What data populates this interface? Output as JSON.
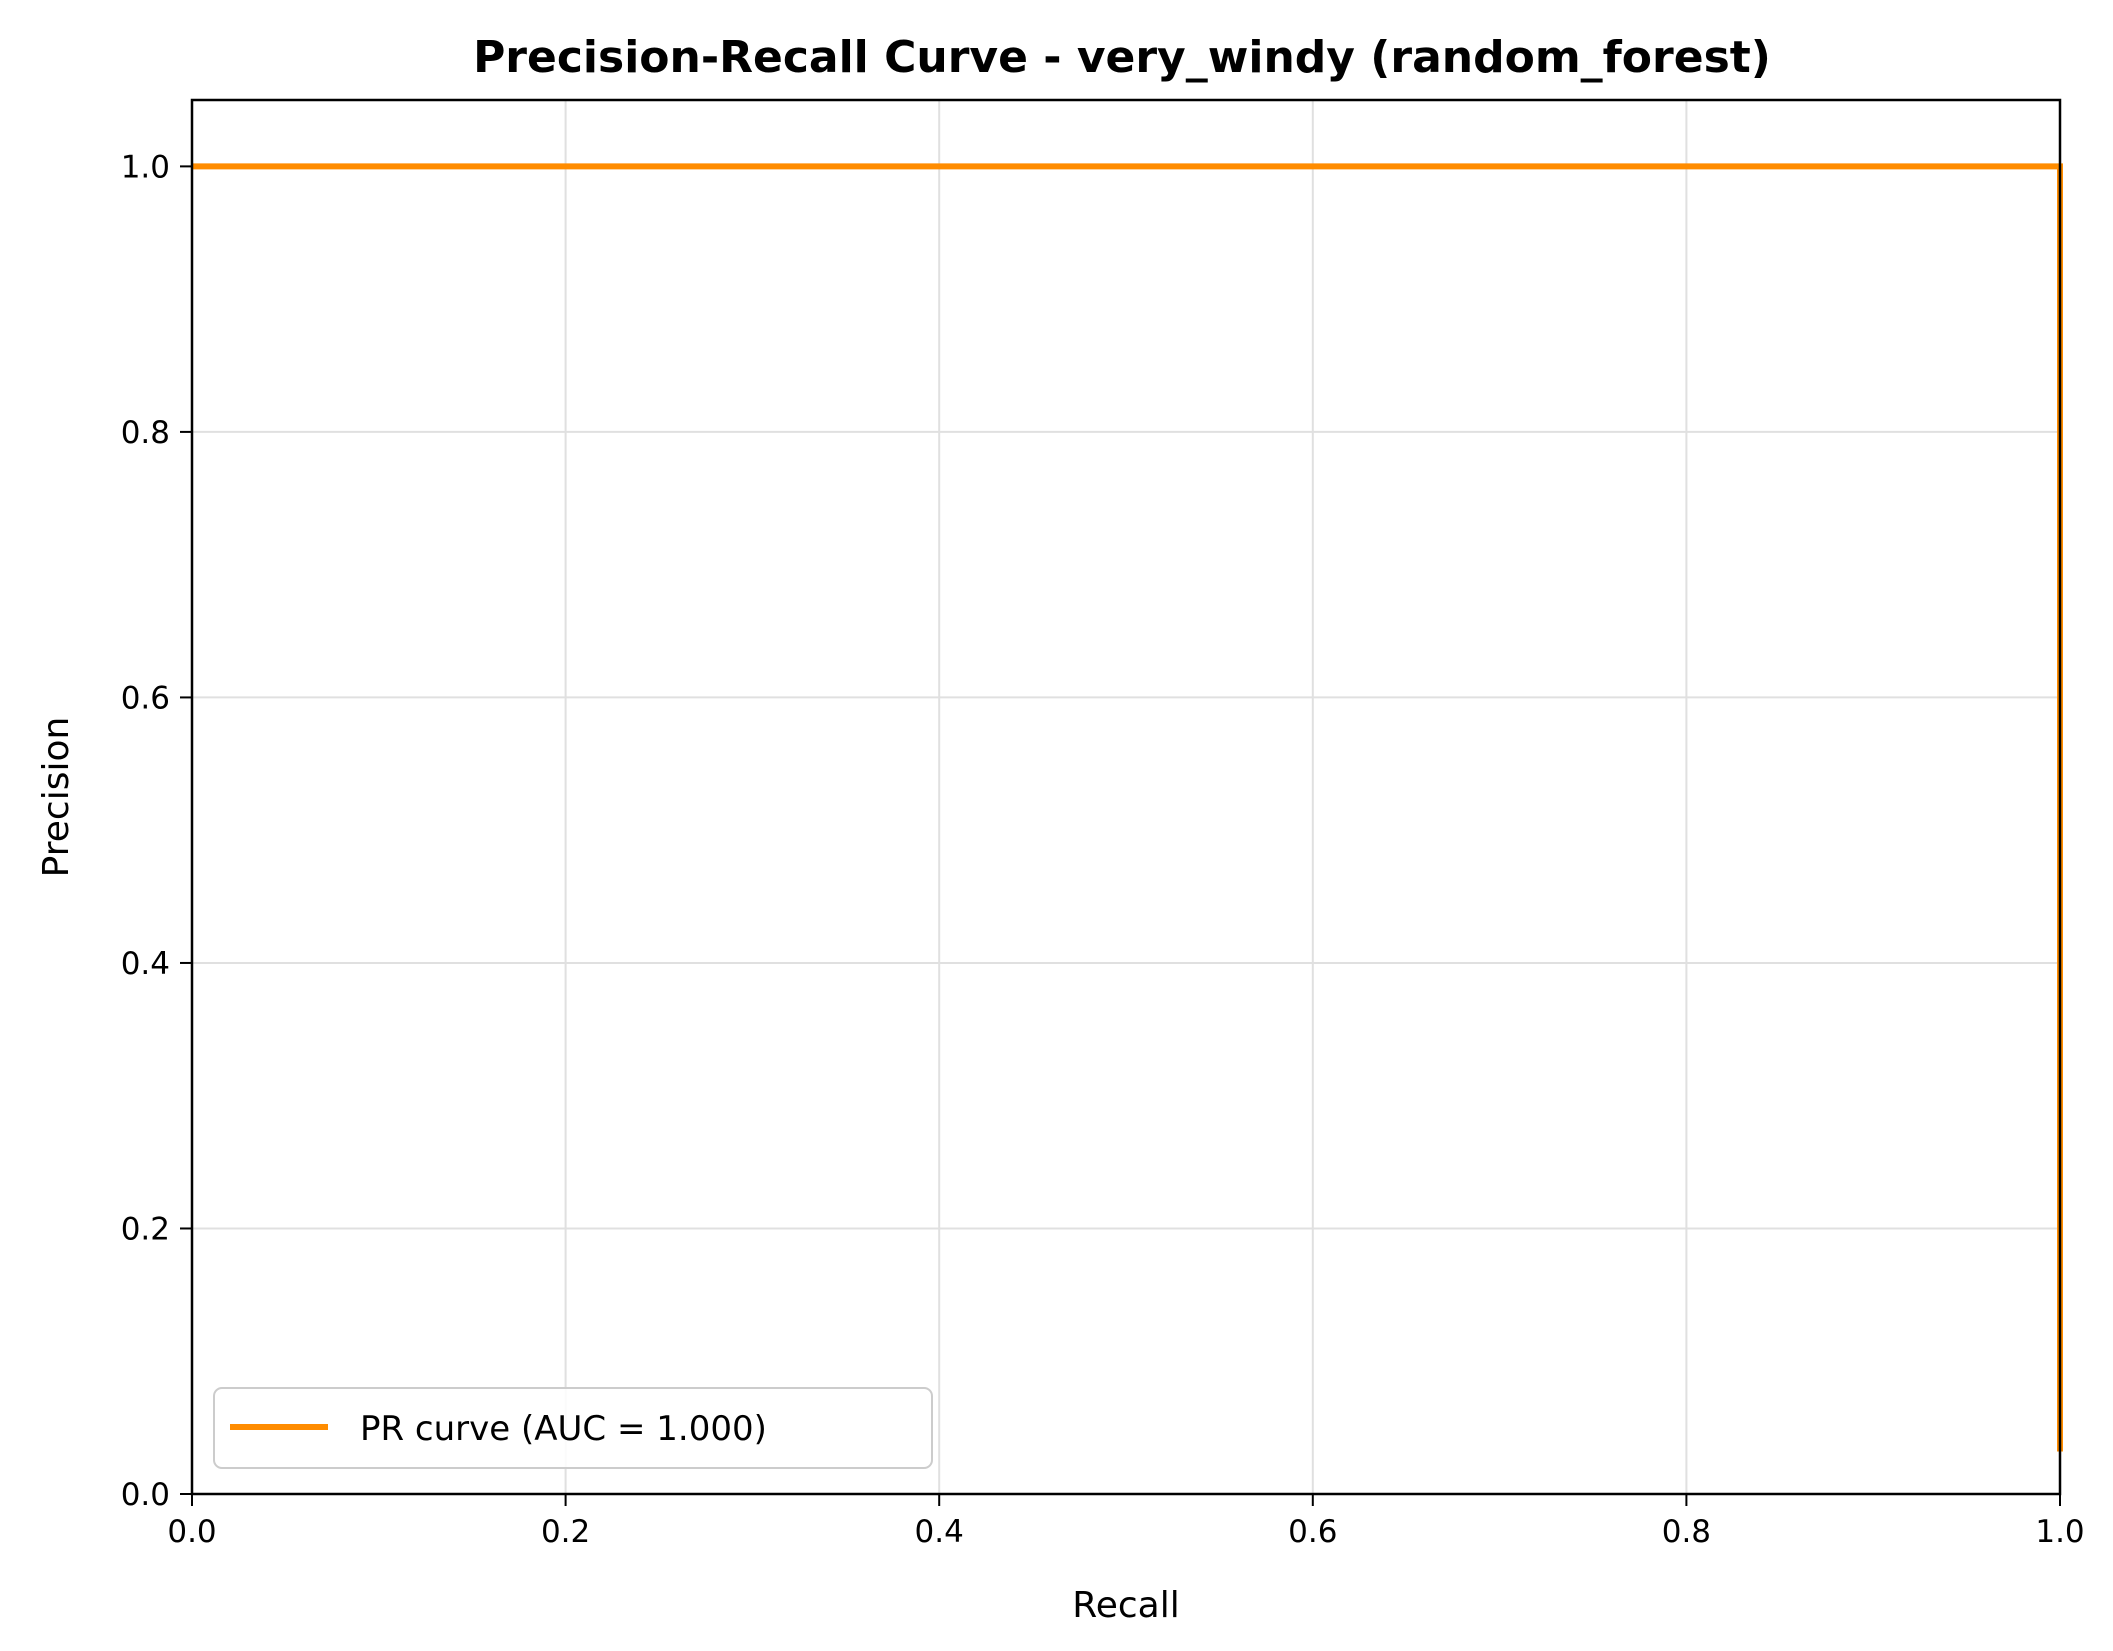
{
  "chart_data": {
    "type": "line",
    "title": "Precision-Recall Curve - very_windy (random_forest)",
    "xlabel": "Recall",
    "ylabel": "Precision",
    "xlim": [
      0.0,
      1.0
    ],
    "ylim": [
      0.0,
      1.05
    ],
    "xticks": [
      "0.0",
      "0.2",
      "0.4",
      "0.6",
      "0.8",
      "1.0"
    ],
    "yticks": [
      "0.0",
      "0.2",
      "0.4",
      "0.6",
      "0.8",
      "1.0"
    ],
    "grid": true,
    "legend_position": "lower-left",
    "series": [
      {
        "name": "PR curve (AUC = 1.000)",
        "color": "#ff8c00",
        "x": [
          0.0,
          1.0,
          1.0
        ],
        "y": [
          1.0,
          1.0,
          0.032
        ]
      }
    ]
  }
}
